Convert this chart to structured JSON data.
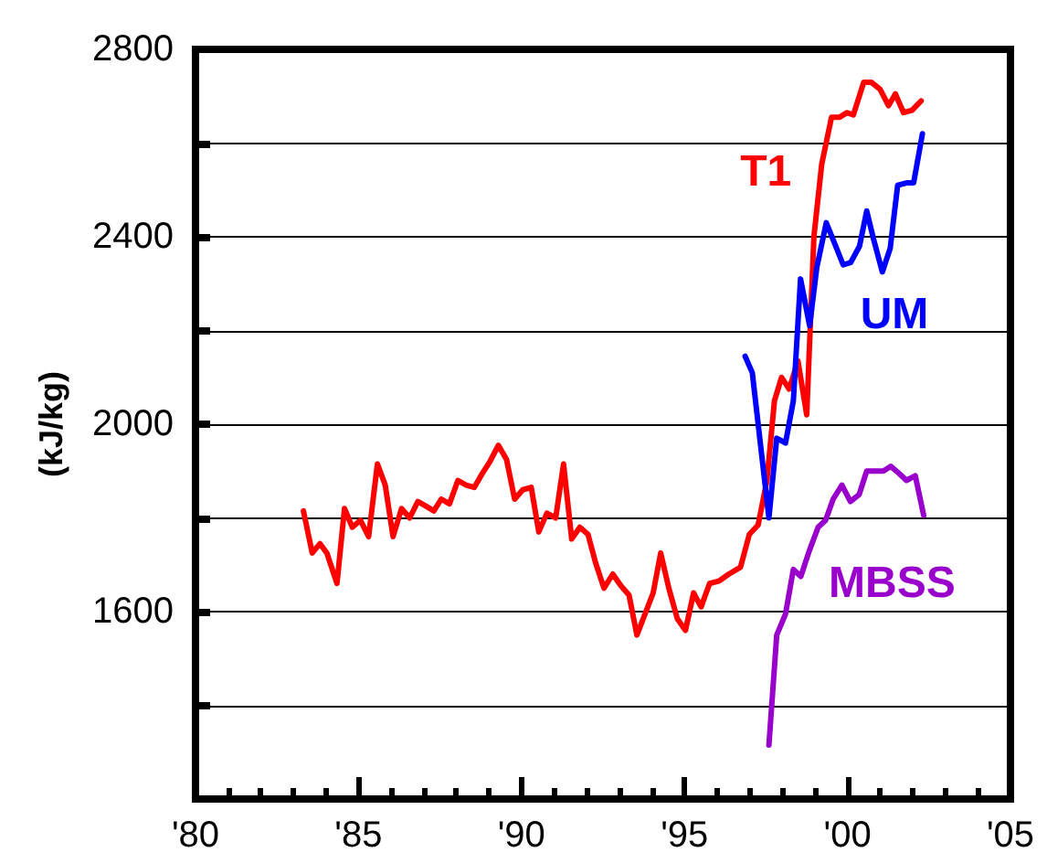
{
  "chart_data": {
    "type": "line",
    "ylabel": "(kJ/kg)",
    "xlim": [
      1980,
      2005
    ],
    "ylim": [
      1200,
      2800
    ],
    "xticks": [
      {
        "value": 1980,
        "label": "'80"
      },
      {
        "value": 1985,
        "label": "'85"
      },
      {
        "value": 1990,
        "label": "'90"
      },
      {
        "value": 1995,
        "label": "'95"
      },
      {
        "value": 2000,
        "label": "'00"
      },
      {
        "value": 2005,
        "label": "'05"
      }
    ],
    "yticks": [
      {
        "value": 1200,
        "label": null
      },
      {
        "value": 1400,
        "label": null
      },
      1600,
      {
        "value": 1800,
        "label": null
      },
      2000,
      {
        "value": 2200,
        "label": null
      },
      2400,
      {
        "value": 2600,
        "label": null
      },
      2800
    ],
    "grid": "y",
    "legend": false,
    "marker": "none",
    "line_style": "solid",
    "series": [
      {
        "name": "T1",
        "color": "#ff0000",
        "x": [
          1983.31,
          1983.58,
          1983.82,
          1984.03,
          1984.34,
          1984.57,
          1984.81,
          1985.06,
          1985.31,
          1985.58,
          1985.82,
          1986.06,
          1986.32,
          1986.57,
          1986.82,
          1987.07,
          1987.31,
          1987.54,
          1987.79,
          1988.05,
          1988.3,
          1988.55,
          1988.8,
          1989.03,
          1989.29,
          1989.54,
          1989.79,
          1990.04,
          1990.3,
          1990.53,
          1990.78,
          1991.05,
          1991.29,
          1991.54,
          1991.79,
          1992.04,
          1992.27,
          1992.53,
          1992.8,
          1993.05,
          1993.3,
          1993.54,
          1993.79,
          1994.04,
          1994.27,
          1994.52,
          1994.78,
          1995.03,
          1995.28,
          1995.51,
          1995.77,
          1996.05,
          1996.36,
          1996.72,
          1996.99,
          1997.26,
          1997.53,
          1997.76,
          1997.98,
          1998.21,
          1998.48,
          1998.75,
          1998.97,
          1999.21,
          1999.51,
          1999.75,
          1999.99,
          2000.18,
          2000.5,
          2000.73,
          2001.0,
          2001.26,
          2001.47,
          2001.72,
          2001.98,
          2002.26
        ],
        "values": [
          1815,
          1725,
          1745,
          1725,
          1660,
          1820,
          1780,
          1795,
          1760,
          1915,
          1870,
          1760,
          1820,
          1800,
          1835,
          1825,
          1815,
          1840,
          1830,
          1880,
          1870,
          1865,
          1895,
          1920,
          1955,
          1925,
          1840,
          1860,
          1865,
          1770,
          1810,
          1800,
          1915,
          1755,
          1780,
          1765,
          1705,
          1650,
          1680,
          1655,
          1635,
          1550,
          1595,
          1640,
          1725,
          1650,
          1585,
          1560,
          1640,
          1610,
          1660,
          1665,
          1680,
          1695,
          1765,
          1785,
          1880,
          2050,
          2100,
          2075,
          2135,
          2020,
          2400,
          2555,
          2655,
          2655,
          2665,
          2660,
          2730,
          2730,
          2715,
          2680,
          2705,
          2665,
          2670,
          2690
        ]
      },
      {
        "name": "UM",
        "color": "#0000ff",
        "x": [
          1996.86,
          1997.08,
          1997.59,
          1997.83,
          1998.1,
          1998.34,
          1998.56,
          1998.84,
          1999.06,
          1999.35,
          1999.87,
          2000.1,
          2000.37,
          2000.59,
          2000.8,
          2001.07,
          2001.31,
          2001.54,
          2001.81,
          2002.03,
          2002.3
        ],
        "values": [
          2145,
          2110,
          1800,
          1970,
          1960,
          2050,
          2310,
          2210,
          2335,
          2430,
          2340,
          2345,
          2380,
          2455,
          2395,
          2325,
          2375,
          2510,
          2515,
          2515,
          2620
        ]
      },
      {
        "name": "MBSS",
        "color": "#9900cc",
        "x": [
          1997.59,
          1997.83,
          1998.1,
          1998.34,
          1998.57,
          1998.83,
          1999.1,
          1999.33,
          1999.56,
          1999.83,
          2000.09,
          2000.36,
          2000.59,
          2000.86,
          2001.1,
          2001.33,
          2001.58,
          2001.81,
          2002.08,
          2002.34
        ],
        "values": [
          1315,
          1550,
          1595,
          1690,
          1675,
          1730,
          1780,
          1795,
          1840,
          1870,
          1835,
          1850,
          1900,
          1900,
          1900,
          1910,
          1895,
          1880,
          1890,
          1805
        ]
      }
    ]
  }
}
